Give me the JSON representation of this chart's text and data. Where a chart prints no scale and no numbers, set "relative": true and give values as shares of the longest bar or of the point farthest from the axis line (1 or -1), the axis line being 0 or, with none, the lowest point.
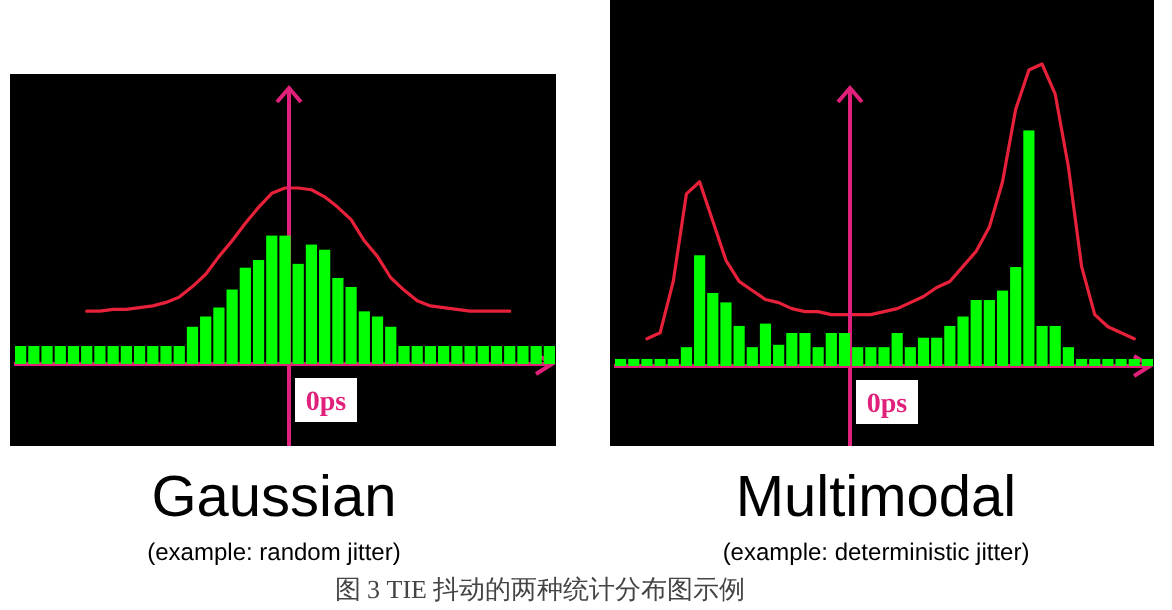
{
  "chart_data": [
    {
      "type": "bar",
      "relative": true,
      "title": "Gaussian",
      "subtitle": "(example: random jitter)",
      "categories": [
        null,
        null,
        null,
        null,
        null,
        null,
        null,
        null,
        null,
        null,
        null,
        null,
        null,
        null,
        null,
        null,
        null,
        null,
        null,
        null,
        null,
        null,
        null,
        null,
        null,
        null,
        null,
        null,
        null,
        null,
        null,
        null,
        null,
        null,
        null,
        null,
        null,
        null,
        null,
        null,
        null
      ],
      "series": [
        {
          "color": "#00ff00",
          "values": [
            0.14,
            0.14,
            0.14,
            0.14,
            0.14,
            0.14,
            0.14,
            0.14,
            0.14,
            0.14,
            0.14,
            0.14,
            0.14,
            0.29,
            0.37,
            0.44,
            0.58,
            0.75,
            0.81,
            1.0,
            1.0,
            0.78,
            0.93,
            0.89,
            0.67,
            0.6,
            0.41,
            0.37,
            0.29,
            0.14,
            0.14,
            0.14,
            0.14,
            0.14,
            0.14,
            0.14,
            0.14,
            0.14,
            0.14,
            0.14,
            0.14
          ]
        }
      ],
      "annotations": [
        "0ps",
        "图 3 TIE 抖动的两种统计分布图示例"
      ]
    },
    {
      "type": "line",
      "relative": true,
      "categories": [
        null,
        null,
        null,
        null,
        null,
        null,
        null,
        null,
        null,
        null,
        null,
        null,
        null,
        null,
        null,
        null,
        null,
        null,
        null,
        null,
        null,
        null,
        null,
        null,
        null,
        null,
        null,
        null,
        null,
        null,
        null,
        null,
        null
      ],
      "series": [
        {
          "color": "#e8213a",
          "values": [
            0.3,
            0.3,
            0.31,
            0.31,
            0.32,
            0.33,
            0.35,
            0.38,
            0.44,
            0.51,
            0.61,
            0.7,
            0.8,
            0.89,
            0.97,
            1.0,
            1.0,
            0.99,
            0.95,
            0.89,
            0.82,
            0.7,
            0.61,
            0.49,
            0.42,
            0.36,
            0.33,
            0.32,
            0.31,
            0.3,
            0.3,
            0.3,
            0.3
          ]
        }
      ]
    },
    {
      "type": "bar",
      "relative": true,
      "title": "Multimodal",
      "subtitle": "(example: deterministic jitter)",
      "categories": [
        null,
        null,
        null,
        null,
        null,
        null,
        null,
        null,
        null,
        null,
        null,
        null,
        null,
        null,
        null,
        null,
        null,
        null,
        null,
        null,
        null,
        null,
        null,
        null,
        null,
        null,
        null,
        null,
        null,
        null,
        null,
        null,
        null,
        null,
        null,
        null,
        null,
        null,
        null,
        null,
        null
      ],
      "series": [
        {
          "color": "#00ff00",
          "values": [
            0.03,
            0.03,
            0.03,
            0.03,
            0.03,
            0.08,
            0.47,
            0.31,
            0.27,
            0.17,
            0.08,
            0.18,
            0.09,
            0.14,
            0.14,
            0.08,
            0.14,
            0.14,
            0.08,
            0.08,
            0.08,
            0.14,
            0.08,
            0.12,
            0.12,
            0.17,
            0.21,
            0.28,
            0.28,
            0.32,
            0.42,
            1.0,
            0.17,
            0.17,
            0.08,
            0.03,
            0.03,
            0.03,
            0.03,
            0.03,
            0.03
          ]
        }
      ],
      "annotations": [
        "0ps"
      ]
    },
    {
      "type": "line",
      "relative": true,
      "categories": [
        null,
        null,
        null,
        null,
        null,
        null,
        null,
        null,
        null,
        null,
        null,
        null,
        null,
        null,
        null,
        null,
        null,
        null,
        null,
        null,
        null,
        null,
        null,
        null,
        null,
        null,
        null,
        null,
        null,
        null,
        null,
        null,
        null,
        null,
        null,
        null,
        null,
        null
      ],
      "series": [
        {
          "color": "#e8213a",
          "values": [
            0.09,
            0.11,
            0.28,
            0.57,
            0.61,
            0.48,
            0.35,
            0.28,
            0.25,
            0.22,
            0.21,
            0.19,
            0.18,
            0.18,
            0.17,
            0.17,
            0.17,
            0.17,
            0.18,
            0.19,
            0.21,
            0.23,
            0.26,
            0.28,
            0.33,
            0.38,
            0.46,
            0.61,
            0.85,
            0.98,
            1.0,
            0.9,
            0.66,
            0.33,
            0.17,
            0.13,
            0.11,
            0.09
          ]
        }
      ]
    }
  ]
}
